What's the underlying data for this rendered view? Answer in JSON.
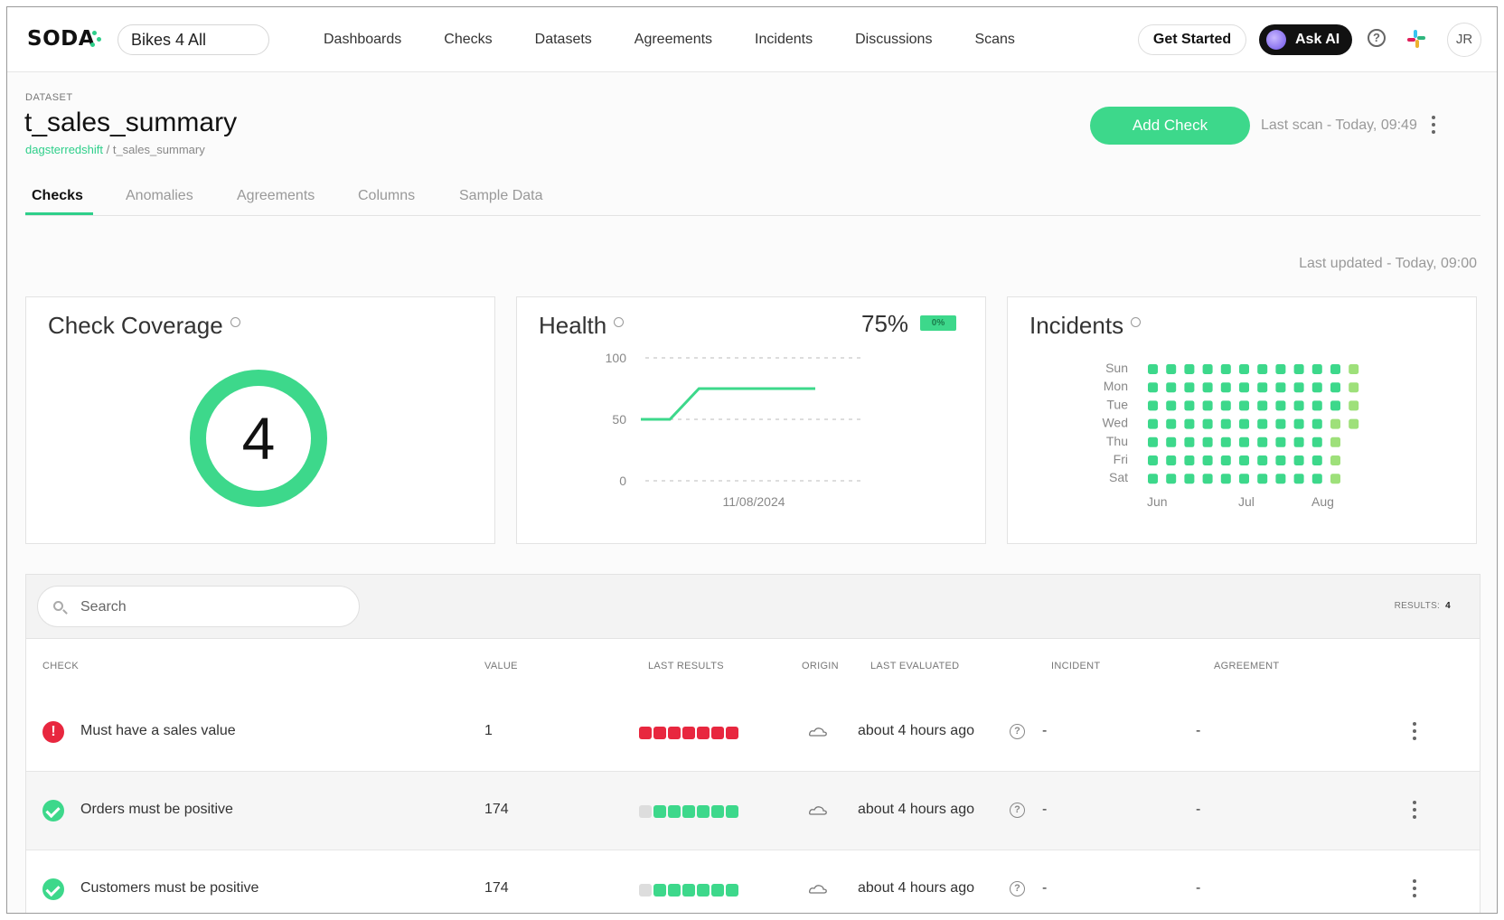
{
  "topbar": {
    "logo": "SODA",
    "org": "Bikes 4 All",
    "nav": [
      "Dashboards",
      "Checks",
      "Datasets",
      "Agreements",
      "Incidents",
      "Discussions",
      "Scans"
    ],
    "get_started": "Get Started",
    "ask_ai": "Ask AI",
    "help_glyph": "?",
    "avatar": "JR",
    "icons": {
      "help": "help-circle-icon",
      "slack": "slack-icon",
      "ai": "ai-orb-icon"
    }
  },
  "dataset": {
    "label": "DATASET",
    "title": "t_sales_summary",
    "breadcrumb_source": "dagsterredshift",
    "breadcrumb_sep": " / ",
    "breadcrumb_name": "t_sales_summary",
    "add_check": "Add Check",
    "last_scan": "Last scan - Today, 09:49"
  },
  "tabs": [
    "Checks",
    "Anomalies",
    "Agreements",
    "Columns",
    "Sample Data"
  ],
  "active_tab": "Checks",
  "last_updated": "Last updated - Today, 09:00",
  "cards": {
    "coverage": {
      "title": "Check Coverage",
      "value": "4"
    },
    "health": {
      "title": "Health",
      "percent": "75%",
      "change": "0%"
    },
    "incidents": {
      "title": "Incidents"
    }
  },
  "chart_data": [
    {
      "type": "line",
      "name": "health",
      "ylim": [
        0,
        100
      ],
      "yticks": [
        "100",
        "50",
        "0"
      ],
      "xtick": "11/08/2024",
      "points": [
        [
          0,
          50
        ],
        [
          1,
          50
        ],
        [
          2,
          75
        ],
        [
          3,
          75
        ],
        [
          4,
          75
        ],
        [
          5,
          75
        ],
        [
          6,
          75
        ]
      ],
      "color": "#3dd88b"
    },
    {
      "type": "heatmap",
      "name": "incidents",
      "rows": [
        "Sun",
        "Mon",
        "Tue",
        "Wed",
        "Thu",
        "Fri",
        "Sat"
      ],
      "months": [
        "Jun",
        "Jul",
        "Aug"
      ],
      "cells": [
        [
          2,
          2,
          2,
          2,
          2,
          2,
          2,
          2,
          2,
          2,
          2,
          1
        ],
        [
          2,
          2,
          2,
          2,
          2,
          2,
          2,
          2,
          2,
          2,
          2,
          1
        ],
        [
          2,
          2,
          2,
          2,
          2,
          2,
          2,
          2,
          2,
          2,
          2,
          1
        ],
        [
          2,
          2,
          2,
          2,
          2,
          2,
          2,
          2,
          2,
          2,
          1,
          1
        ],
        [
          2,
          2,
          2,
          2,
          2,
          2,
          2,
          2,
          2,
          2,
          1,
          0
        ],
        [
          2,
          2,
          2,
          2,
          2,
          2,
          2,
          2,
          2,
          2,
          1,
          0
        ],
        [
          2,
          2,
          2,
          2,
          2,
          2,
          2,
          2,
          2,
          2,
          1,
          0
        ]
      ],
      "colors": {
        "dark": "#3dd88b",
        "light": "#9ee07a"
      }
    }
  ],
  "table": {
    "search_placeholder": "Search",
    "results_label": "RESULTS:",
    "results_count": "4",
    "headers": [
      "CHECK",
      "VALUE",
      "LAST RESULTS",
      "ORIGIN",
      "LAST EVALUATED",
      "INCIDENT",
      "AGREEMENT"
    ],
    "rows": [
      {
        "status": "fail",
        "status_glyph": "!",
        "check": "Must have a sales value",
        "value": "1",
        "results": [
          "fail",
          "fail",
          "fail",
          "fail",
          "fail",
          "fail",
          "fail"
        ],
        "origin": "cloud-icon",
        "evaluated": "about 4 hours ago",
        "incident": "-",
        "agreement": "-"
      },
      {
        "status": "pass",
        "check": "Orders must be positive",
        "value": "174",
        "results": [
          "none",
          "pass",
          "pass",
          "pass",
          "pass",
          "pass",
          "pass"
        ],
        "origin": "cloud-icon",
        "evaluated": "about 4 hours ago",
        "incident": "-",
        "agreement": "-"
      },
      {
        "status": "pass",
        "check": "Customers must be positive",
        "value": "174",
        "results": [
          "none",
          "pass",
          "pass",
          "pass",
          "pass",
          "pass",
          "pass"
        ],
        "origin": "cloud-icon",
        "evaluated": "about 4 hours ago",
        "incident": "-",
        "agreement": "-"
      }
    ]
  }
}
